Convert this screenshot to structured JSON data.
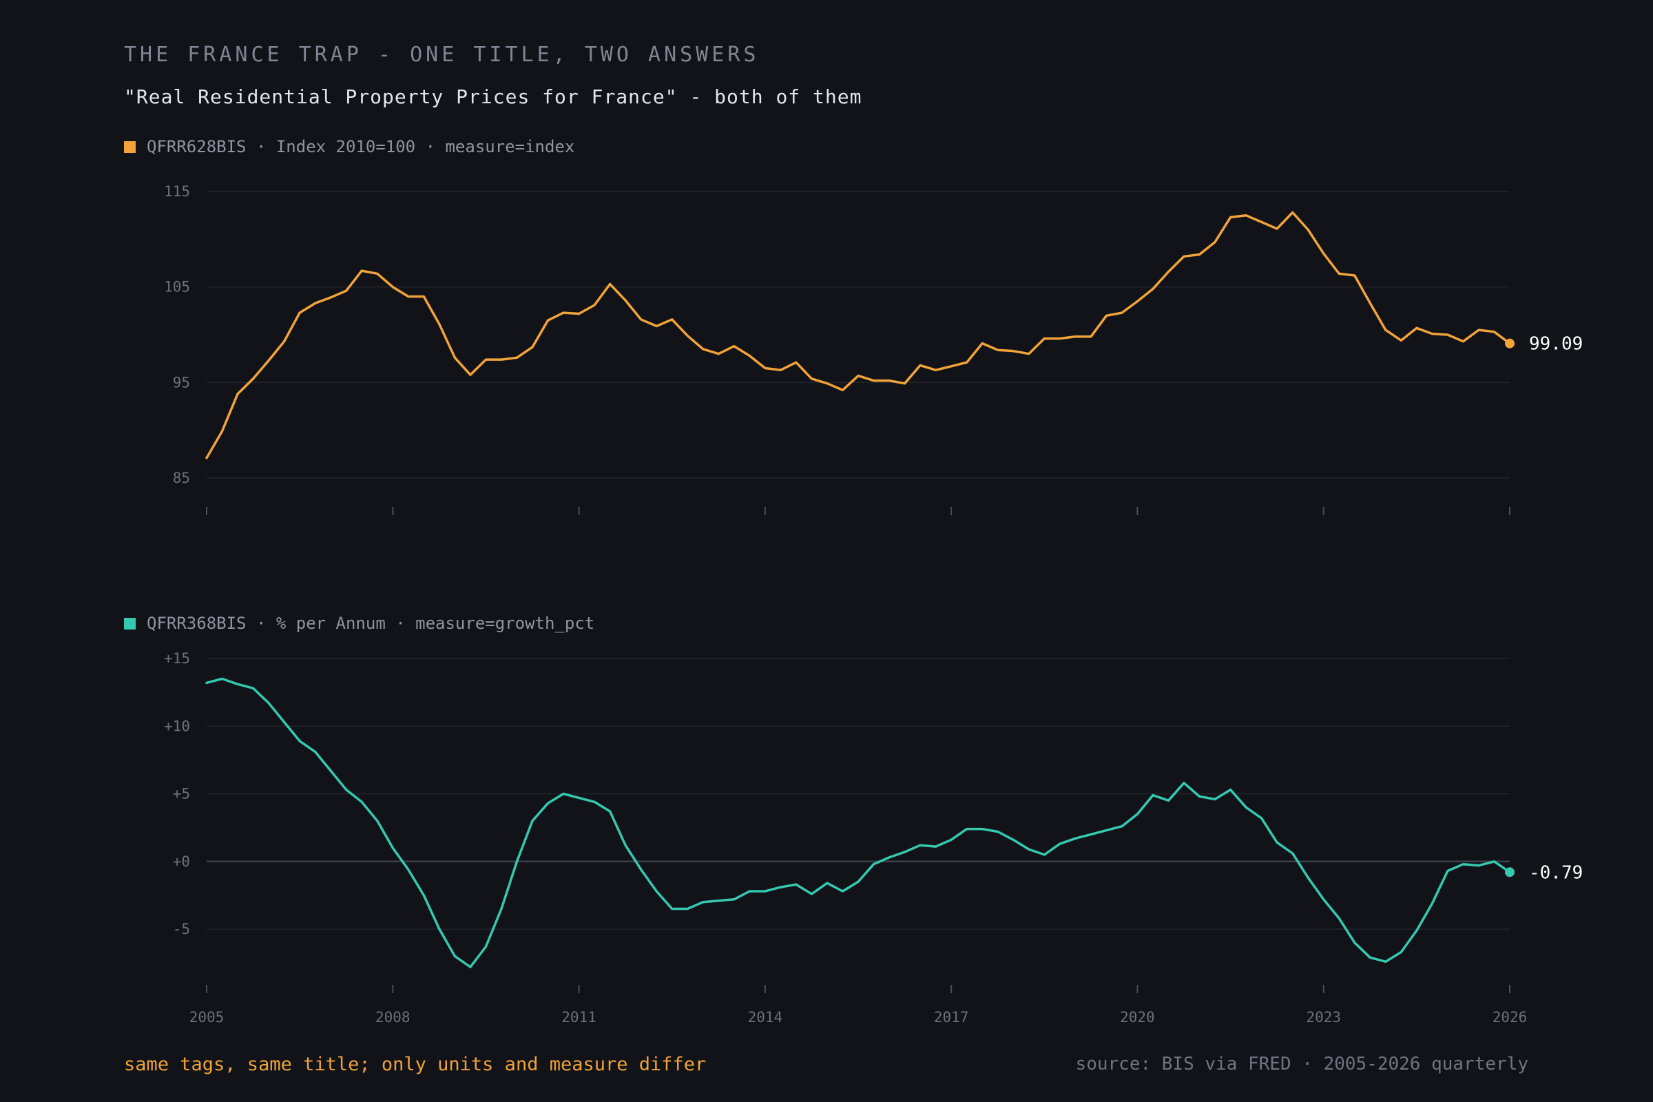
{
  "title": "THE FRANCE TRAP - ONE TITLE, TWO ANSWERS",
  "subtitle": "\"Real Residential Property Prices for France\" - both of them",
  "footnote": "same tags, same title; only units and measure differ",
  "source": "source: BIS via FRED · 2005-2026 quarterly",
  "colors": {
    "background": "#111318",
    "index_series": "#f2a33a",
    "growth_series": "#35c9b0",
    "grid": "#23262e",
    "zero_line": "#3c414d"
  },
  "chart_data": [
    {
      "type": "line",
      "legend": "QFRR628BIS · Index 2010=100 · measure=index",
      "x_start": 2005.0,
      "x_step": 0.25,
      "xlim": [
        2005,
        2026
      ],
      "ylim": [
        85,
        115
      ],
      "yticks": [
        "115",
        "105",
        "95",
        "85"
      ],
      "ytick_values": [
        115,
        105,
        95,
        85
      ],
      "xticks": [
        "2005",
        "2008",
        "2011",
        "2014",
        "2017",
        "2020",
        "2023",
        "2026"
      ],
      "show_xtick_labels": false,
      "grid": true,
      "end_label": "99.09",
      "series": [
        {
          "values": [
            87.1,
            89.9,
            93.8,
            95.4,
            97.3,
            99.3,
            102.3,
            103.3,
            103.9,
            104.6,
            106.7,
            106.4,
            105.0,
            104.0,
            104.0,
            101.1,
            97.6,
            95.8,
            97.4,
            97.4,
            97.6,
            98.7,
            101.5,
            102.3,
            102.2,
            103.1,
            105.3,
            103.6,
            101.6,
            100.9,
            101.6,
            99.9,
            98.5,
            98.0,
            98.8,
            97.8,
            96.5,
            96.3,
            97.1,
            95.4,
            94.9,
            94.2,
            95.7,
            95.2,
            95.2,
            94.9,
            96.8,
            96.3,
            96.7,
            97.1,
            99.1,
            98.4,
            98.3,
            98.0,
            99.6,
            99.6,
            99.8,
            99.8,
            102.0,
            102.3,
            103.5,
            104.8,
            106.6,
            108.2,
            108.4,
            109.7,
            112.3,
            112.5,
            111.8,
            111.1,
            112.8,
            111.0,
            108.5,
            106.4,
            106.2,
            103.3,
            100.5,
            99.4,
            100.7,
            100.1,
            100.0,
            99.3,
            100.5,
            100.3,
            99.09
          ]
        }
      ]
    },
    {
      "type": "line",
      "legend": "QFRR368BIS · % per Annum · measure=growth_pct",
      "x_start": 2005.0,
      "x_step": 0.25,
      "xlim": [
        2005,
        2026
      ],
      "ylim": [
        -8.5,
        15
      ],
      "yticks": [
        "+15",
        "+10",
        "+5",
        "+0",
        "-5"
      ],
      "ytick_values": [
        15,
        10,
        5,
        0,
        -5
      ],
      "xticks": [
        "2005",
        "2008",
        "2011",
        "2014",
        "2017",
        "2020",
        "2023",
        "2026"
      ],
      "zero_line": true,
      "grid": true,
      "end_label": "-0.79",
      "series": [
        {
          "values": [
            13.2,
            13.5,
            13.1,
            12.8,
            11.7,
            10.3,
            8.9,
            8.1,
            6.7,
            5.3,
            4.4,
            3.0,
            1.0,
            -0.6,
            -2.5,
            -5.0,
            -7.0,
            -7.8,
            -6.3,
            -3.5,
            0.0,
            3.0,
            4.3,
            5.0,
            4.7,
            4.4,
            3.7,
            1.2,
            -0.6,
            -2.2,
            -3.5,
            -3.5,
            -3.0,
            -2.9,
            -2.8,
            -2.2,
            -2.2,
            -1.9,
            -1.7,
            -2.4,
            -1.6,
            -2.2,
            -1.5,
            -0.2,
            0.3,
            0.7,
            1.2,
            1.1,
            1.6,
            2.4,
            2.4,
            2.2,
            1.6,
            0.9,
            0.5,
            1.3,
            1.7,
            2.0,
            2.3,
            2.6,
            3.5,
            4.9,
            4.5,
            5.8,
            4.8,
            4.6,
            5.3,
            4.0,
            3.2,
            1.4,
            0.6,
            -1.2,
            -2.8,
            -4.2,
            -6.0,
            -7.1,
            -7.4,
            -6.7,
            -5.1,
            -3.1,
            -0.7,
            -0.2,
            -0.3,
            0.0,
            -0.79
          ]
        }
      ]
    }
  ]
}
